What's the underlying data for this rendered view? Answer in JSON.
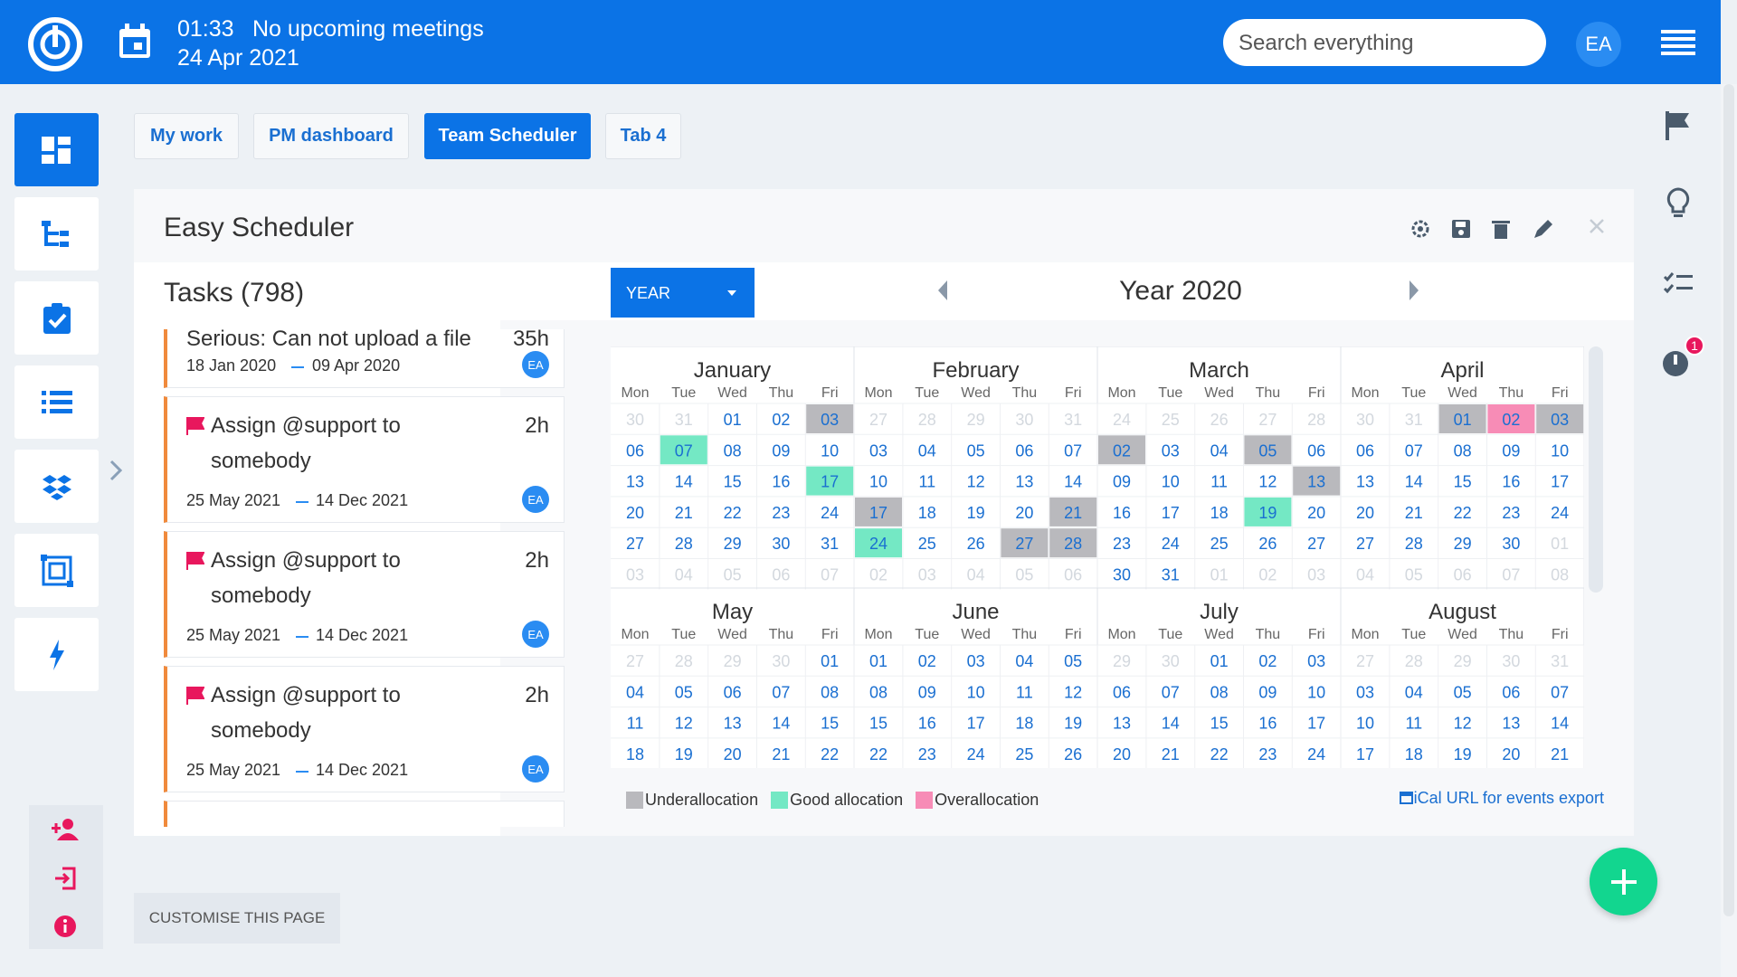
{
  "header": {
    "time": "01:33",
    "meeting": "No upcoming meetings",
    "date": "24 Apr 2021",
    "search_placeholder": "Search everything",
    "avatar": "EA"
  },
  "tabs": [
    "My work",
    "PM dashboard",
    "Team Scheduler",
    "Tab 4"
  ],
  "active_tab": 2,
  "panel": {
    "title": "Easy Scheduler",
    "tasks_heading": "Tasks (798)",
    "view": "YEAR",
    "period": "Year 2020"
  },
  "tasks": [
    {
      "title": "Serious: Can not upload a file",
      "hours": "35h",
      "start": "18 Jan 2020",
      "end": "09 Apr 2020",
      "assignee": "EA",
      "flagged": false
    },
    {
      "title": "Assign @support to somebody",
      "hours": "2h",
      "start": "25 May 2021",
      "end": "14 Dec 2021",
      "assignee": "EA",
      "flagged": true
    },
    {
      "title": "Assign @support to somebody",
      "hours": "2h",
      "start": "25 May 2021",
      "end": "14 Dec 2021",
      "assignee": "EA",
      "flagged": true
    },
    {
      "title": "Assign @support to somebody",
      "hours": "2h",
      "start": "25 May 2021",
      "end": "14 Dec 2021",
      "assignee": "EA",
      "flagged": true
    }
  ],
  "calendar": {
    "weekdays": [
      "Mon",
      "Tue",
      "Wed",
      "Thu",
      "Fri"
    ],
    "months": [
      {
        "name": "January",
        "weeks": [
          [
            "30",
            "31",
            "01",
            "02",
            "03"
          ],
          [
            "06",
            "07",
            "08",
            "09",
            "10"
          ],
          [
            "13",
            "14",
            "15",
            "16",
            "17"
          ],
          [
            "20",
            "21",
            "22",
            "23",
            "24"
          ],
          [
            "27",
            "28",
            "29",
            "30",
            "31"
          ],
          [
            "03",
            "04",
            "05",
            "06",
            "07"
          ]
        ],
        "highlights": [
          [
            0,
            4,
            0
          ],
          [
            1,
            1,
            1
          ],
          [
            2,
            4,
            1
          ]
        ]
      },
      {
        "name": "February",
        "weeks": [
          [
            "27",
            "28",
            "29",
            "30",
            "31"
          ],
          [
            "03",
            "04",
            "05",
            "06",
            "07"
          ],
          [
            "10",
            "11",
            "12",
            "13",
            "14"
          ],
          [
            "17",
            "18",
            "19",
            "20",
            "21"
          ],
          [
            "24",
            "25",
            "26",
            "27",
            "28"
          ],
          [
            "02",
            "03",
            "04",
            "05",
            "06"
          ]
        ],
        "highlights": [
          [
            3,
            0,
            0
          ],
          [
            3,
            4,
            0
          ],
          [
            4,
            0,
            1
          ],
          [
            4,
            3,
            0
          ],
          [
            4,
            4,
            0
          ]
        ]
      },
      {
        "name": "March",
        "weeks": [
          [
            "24",
            "25",
            "26",
            "27",
            "28"
          ],
          [
            "02",
            "03",
            "04",
            "05",
            "06"
          ],
          [
            "09",
            "10",
            "11",
            "12",
            "13"
          ],
          [
            "16",
            "17",
            "18",
            "19",
            "20"
          ],
          [
            "23",
            "24",
            "25",
            "26",
            "27"
          ],
          [
            "30",
            "31",
            "01",
            "02",
            "03"
          ]
        ],
        "highlights": [
          [
            1,
            0,
            0
          ],
          [
            1,
            3,
            0
          ],
          [
            2,
            4,
            0
          ],
          [
            3,
            3,
            1
          ]
        ]
      },
      {
        "name": "April",
        "weeks": [
          [
            "30",
            "31",
            "01",
            "02",
            "03"
          ],
          [
            "06",
            "07",
            "08",
            "09",
            "10"
          ],
          [
            "13",
            "14",
            "15",
            "16",
            "17"
          ],
          [
            "20",
            "21",
            "22",
            "23",
            "24"
          ],
          [
            "27",
            "28",
            "29",
            "30",
            "01"
          ],
          [
            "04",
            "05",
            "06",
            "07",
            "08"
          ]
        ],
        "highlights": [
          [
            0,
            2,
            0
          ],
          [
            0,
            3,
            2
          ],
          [
            0,
            4,
            0
          ]
        ]
      },
      {
        "name": "May",
        "weeks": [
          [
            "27",
            "28",
            "29",
            "30",
            "01"
          ],
          [
            "04",
            "05",
            "06",
            "07",
            "08"
          ],
          [
            "11",
            "12",
            "13",
            "14",
            "15"
          ],
          [
            "18",
            "19",
            "20",
            "21",
            "22"
          ]
        ],
        "highlights": []
      },
      {
        "name": "June",
        "weeks": [
          [
            "01",
            "02",
            "03",
            "04",
            "05"
          ],
          [
            "08",
            "09",
            "10",
            "11",
            "12"
          ],
          [
            "15",
            "16",
            "17",
            "18",
            "19"
          ],
          [
            "22",
            "23",
            "24",
            "25",
            "26"
          ]
        ],
        "highlights": []
      },
      {
        "name": "July",
        "weeks": [
          [
            "29",
            "30",
            "01",
            "02",
            "03"
          ],
          [
            "06",
            "07",
            "08",
            "09",
            "10"
          ],
          [
            "13",
            "14",
            "15",
            "16",
            "17"
          ],
          [
            "20",
            "21",
            "22",
            "23",
            "24"
          ]
        ],
        "highlights": []
      },
      {
        "name": "August",
        "weeks": [
          [
            "27",
            "28",
            "29",
            "30",
            "31"
          ],
          [
            "03",
            "04",
            "05",
            "06",
            "07"
          ],
          [
            "10",
            "11",
            "12",
            "13",
            "14"
          ],
          [
            "17",
            "18",
            "19",
            "20",
            "21"
          ]
        ],
        "highlights": []
      }
    ],
    "legend": [
      {
        "name": "Underallocation",
        "color": "#b9b9bd"
      },
      {
        "name": "Good allocation",
        "color": "#74e8c4"
      },
      {
        "name": "Overallocation",
        "color": "#f78cb6"
      }
    ],
    "ical": "iCal URL for events export"
  },
  "notifications": "1",
  "customise": "CUSTOMISE THIS PAGE"
}
